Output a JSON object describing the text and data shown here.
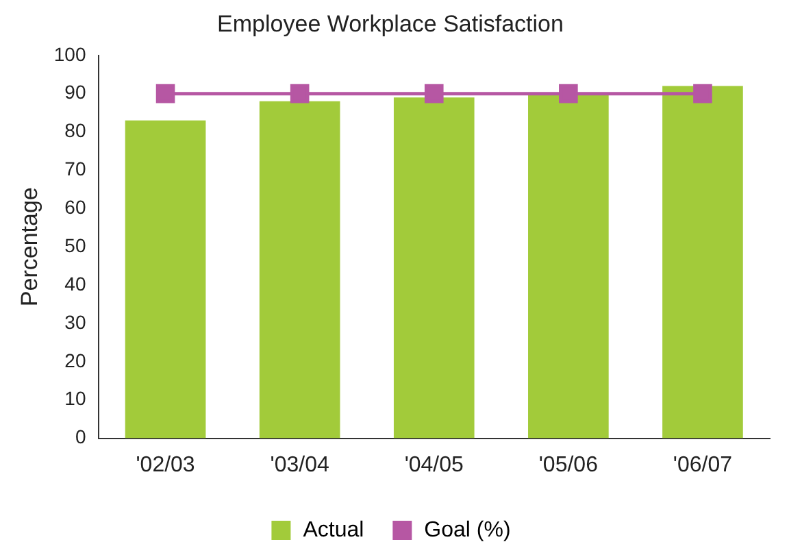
{
  "chart_data": {
    "type": "bar",
    "title": "Employee Workplace Satisfaction",
    "ylabel": "Percentage",
    "categories": [
      "'02/03",
      "'03/04",
      "'04/05",
      "'05/06",
      "'06/07"
    ],
    "series": [
      {
        "name": "Actual",
        "color": "#a2cb3a",
        "values": [
          83,
          88,
          89,
          90,
          92
        ]
      },
      {
        "name": "Goal (%)",
        "type": "line",
        "color": "#b657a3",
        "marker": "square",
        "values": [
          90,
          90,
          90,
          90,
          90
        ]
      }
    ],
    "ylim": [
      0,
      100
    ],
    "yticks": [
      0,
      10,
      20,
      30,
      40,
      50,
      60,
      70,
      80,
      90,
      100
    ],
    "grid": false,
    "legend": "bottom"
  }
}
